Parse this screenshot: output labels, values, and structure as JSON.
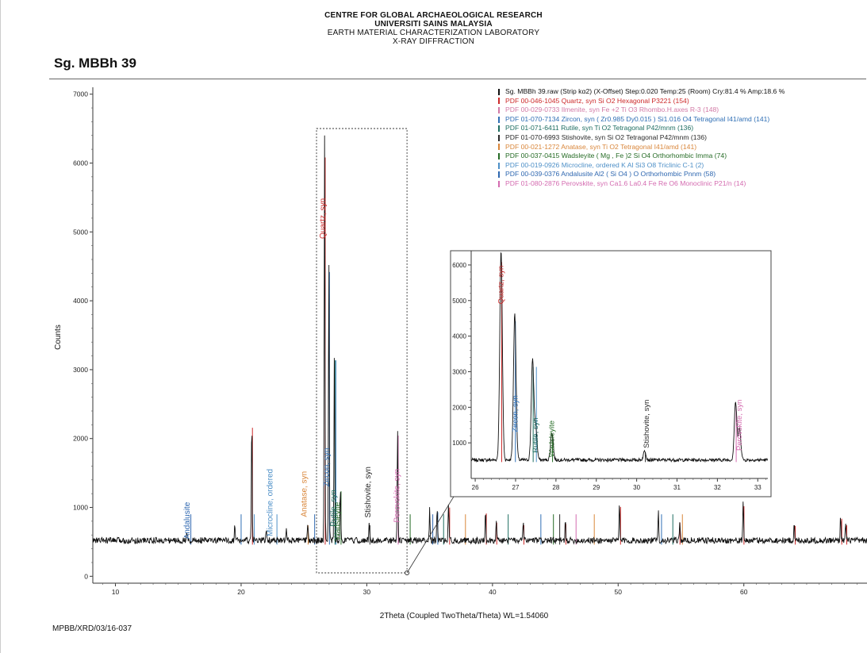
{
  "header": {
    "line1": "CENTRE FOR GLOBAL ARCHAEOLOGICAL RESEARCH",
    "line2": "UNIVERSITI SAINS MALAYSIA",
    "line3": "EARTH MATERIAL CHARACTERIZATION LABORATORY",
    "line4": "X-RAY DIFFRACTION"
  },
  "sample_title": "Sg. MBBh 39",
  "footer_code": "MPBB/XRD/03/16-037",
  "colors": {
    "raw": "#111111",
    "quartz": "#cc2a2a",
    "ilmenite": "#d27aa6",
    "zircon": "#2f6fb5",
    "rutile": "#1d6d60",
    "stishovite": "#2a2a2a",
    "anatase": "#d9863a",
    "wadsleyite": "#256b25",
    "microcline": "#4d8fc7",
    "andalusite": "#2e67b0",
    "perovskite": "#d46bb0"
  },
  "chart_data": [
    {
      "type": "line",
      "xlabel": "2Theta (Coupled TwoTheta/Theta) WL=1.54060",
      "ylabel": "Counts",
      "xlim": [
        8.2,
        69.8
      ],
      "ylim": [
        -100,
        7100
      ],
      "x_ticks": [
        10,
        20,
        30,
        40,
        50,
        60
      ],
      "y_ticks": [
        0,
        1000,
        2000,
        3000,
        4000,
        5000,
        6000,
        7000
      ],
      "baseline": 520,
      "raw_peaks": [
        {
          "x": 15.7,
          "y": 640
        },
        {
          "x": 19.5,
          "y": 760
        },
        {
          "x": 20.85,
          "y": 2270
        },
        {
          "x": 22.0,
          "y": 700
        },
        {
          "x": 23.6,
          "y": 680
        },
        {
          "x": 25.3,
          "y": 780
        },
        {
          "x": 26.64,
          "y": 6400
        },
        {
          "x": 26.98,
          "y": 4650
        },
        {
          "x": 27.42,
          "y": 3300
        },
        {
          "x": 27.9,
          "y": 1300
        },
        {
          "x": 30.2,
          "y": 780
        },
        {
          "x": 32.45,
          "y": 2150
        },
        {
          "x": 35.0,
          "y": 1000
        },
        {
          "x": 35.6,
          "y": 980
        },
        {
          "x": 36.5,
          "y": 1050
        },
        {
          "x": 39.45,
          "y": 960
        },
        {
          "x": 40.3,
          "y": 820
        },
        {
          "x": 42.45,
          "y": 780
        },
        {
          "x": 45.8,
          "y": 800
        },
        {
          "x": 50.1,
          "y": 1060
        },
        {
          "x": 53.2,
          "y": 960
        },
        {
          "x": 54.9,
          "y": 820
        },
        {
          "x": 59.95,
          "y": 1070
        },
        {
          "x": 64.0,
          "y": 770
        },
        {
          "x": 67.7,
          "y": 880
        },
        {
          "x": 68.1,
          "y": 780
        }
      ],
      "reference_sticks": [
        {
          "phase": "quartz",
          "x": [
            20.85,
            26.64,
            36.54,
            39.46,
            40.29,
            42.45,
            45.79,
            50.14,
            54.87,
            59.96,
            64.04,
            67.74,
            68.14
          ]
        },
        {
          "phase": "zircon",
          "x": [
            19.95,
            26.98,
            35.6,
            43.8,
            53.4
          ]
        },
        {
          "phase": "rutile",
          "x": [
            27.42,
            36.06,
            41.2,
            54.3
          ]
        },
        {
          "phase": "anatase",
          "x": [
            25.28,
            37.8,
            48.05,
            55.06
          ]
        },
        {
          "phase": "wadsleyite",
          "x": [
            27.9,
            33.4,
            44.8
          ]
        },
        {
          "phase": "microcline",
          "x": [
            21.0,
            22.8,
            27.5
          ]
        },
        {
          "phase": "andalusite",
          "x": [
            15.95,
            25.8,
            35.2
          ]
        },
        {
          "phase": "stishovite",
          "x": [
            30.2,
            45.3
          ]
        },
        {
          "phase": "perovskite",
          "x": [
            32.45,
            46.6
          ]
        }
      ],
      "peak_labels": [
        {
          "text": "Andalusite",
          "x": 15.9,
          "y": 540,
          "phase": "andalusite"
        },
        {
          "text": "Microcline, ordered",
          "x": 22.5,
          "y": 580,
          "phase": "microcline"
        },
        {
          "text": "Anatase, syn",
          "x": 25.2,
          "y": 860,
          "phase": "anatase"
        },
        {
          "text": "Quartz, syn",
          "x": 26.7,
          "y": 4900,
          "phase": "quartz"
        },
        {
          "text": "Zircon, syn",
          "x": 27.0,
          "y": 1300,
          "phase": "zircon"
        },
        {
          "text": "Rutile, syn",
          "x": 27.55,
          "y": 720,
          "phase": "rutile"
        },
        {
          "text": "Wadsleyite",
          "x": 27.85,
          "y": 520,
          "phase": "wadsleyite"
        },
        {
          "text": "Stishovite, syn",
          "x": 30.3,
          "y": 850,
          "phase": "stishovite"
        },
        {
          "text": "Perovskite, syn",
          "x": 32.6,
          "y": 780,
          "phase": "perovskite"
        }
      ],
      "legend": [
        {
          "text": "Sg. MBBh 39.raw (Strip kα2) (X-Offset) Step:0.020 Temp:25 (Room) Cry:81.4 % Amp:18.6 %",
          "color": "#111111"
        },
        {
          "text": "PDF 00-046-1045 Quartz, syn Si O2 Hexagonal P3221 (154)",
          "color": "#cc2a2a"
        },
        {
          "text": "PDF 00-029-0733 Ilmenite, syn Fe +2 Ti O3 Rhombo.H.axes R-3 (148)",
          "color": "#d27aa6"
        },
        {
          "text": "PDF 01-070-7134 Zircon, syn ( Zr0.985 Dy0.015 ) Si1.016 O4 Tetragonal I41/amd (141)",
          "color": "#2f6fb5"
        },
        {
          "text": "PDF 01-071-6411 Rutile, syn Ti O2 Tetragonal P42/mnm (136)",
          "color": "#1d6d60"
        },
        {
          "text": "PDF 01-070-6993 Stishovite, syn Si O2 Tetragonal P42/mnm (136)",
          "color": "#2a2a2a"
        },
        {
          "text": "PDF 00-021-1272 Anatase, syn Ti O2 Tetragonal I41/amd (141)",
          "color": "#d9863a"
        },
        {
          "text": "PDF 00-037-0415 Wadsleyite ( Mg , Fe )2 Si O4 Orthorhombic Imma (74)",
          "color": "#256b25"
        },
        {
          "text": "PDF 00-019-0926 Microcline, ordered K Al Si3 O8 Triclinic C-1 (2)",
          "color": "#4d8fc7"
        },
        {
          "text": "PDF 00-039-0376 Andalusite Al2 ( Si O4 ) O Orthorhombic Pnnm (58)",
          "color": "#2e67b0"
        },
        {
          "text": "PDF 01-080-2876 Perovskite, syn Ca1.6 La0.4 Fe Re O6 Monoclinic P21/n (14)",
          "color": "#d46bb0"
        }
      ],
      "zoom_region": {
        "x": [
          26.0,
          33.2
        ],
        "y": [
          0,
          6400
        ]
      }
    },
    {
      "type": "line",
      "title": "",
      "xlim": [
        25.9,
        33.25
      ],
      "ylim": [
        0,
        6400
      ],
      "x_ticks": [
        26,
        27,
        28,
        29,
        30,
        31,
        32,
        33
      ],
      "y_ticks": [
        1000,
        2000,
        3000,
        4000,
        5000,
        6000
      ],
      "baseline": 520,
      "raw_peaks": [
        {
          "x": 26.64,
          "y": 6400
        },
        {
          "x": 26.98,
          "y": 4650
        },
        {
          "x": 27.42,
          "y": 3300
        },
        {
          "x": 27.5,
          "y": 1400
        },
        {
          "x": 27.9,
          "y": 1300
        },
        {
          "x": 30.2,
          "y": 780
        },
        {
          "x": 32.45,
          "y": 2150
        },
        {
          "x": 32.55,
          "y": 1400
        }
      ],
      "peak_labels": [
        {
          "text": "Quartz, syn",
          "x": 26.7,
          "y": 4900,
          "phase": "quartz"
        },
        {
          "text": "Zircon, syn",
          "x": 27.05,
          "y": 1300,
          "phase": "zircon"
        },
        {
          "text": "Rutile, syn",
          "x": 27.55,
          "y": 720,
          "phase": "rutile"
        },
        {
          "text": "Wadsleyite",
          "x": 27.95,
          "y": 600,
          "phase": "wadsleyite"
        },
        {
          "text": "Stishovite, syn",
          "x": 30.3,
          "y": 850,
          "phase": "stishovite"
        },
        {
          "text": "Perovskite, syn",
          "x": 32.6,
          "y": 780,
          "phase": "perovskite"
        }
      ]
    }
  ]
}
